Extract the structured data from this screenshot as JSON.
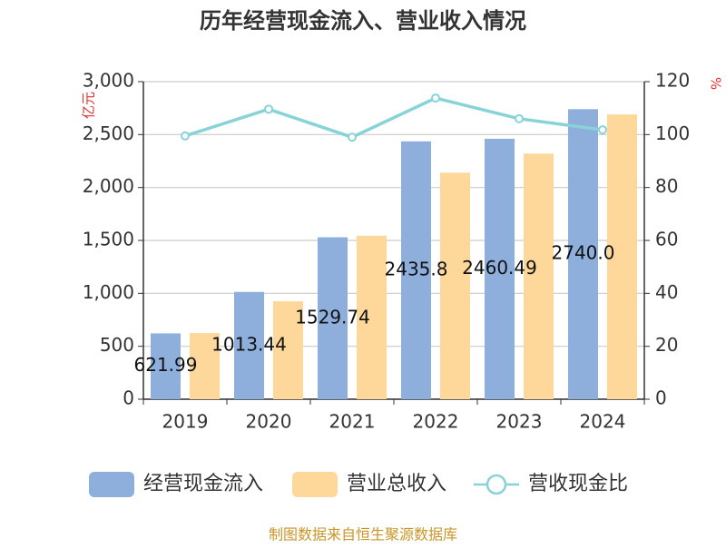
{
  "chart_data": {
    "type": "bar-line",
    "title": "历年经营现金流入、营业收入情况",
    "y_label": "亿元",
    "y2_label": "%",
    "categories": [
      "2019",
      "2020",
      "2021",
      "2022",
      "2023",
      "2024"
    ],
    "series": [
      {
        "name": "经营现金流入",
        "color": "#8eaedc",
        "type": "bar",
        "values": [
          621.99,
          1013.44,
          1529.74,
          2435.8,
          2460.49,
          2740.0
        ],
        "value_labels": [
          "621.99",
          "1013.44",
          "1529.74",
          "2435.8",
          "2460.49",
          "2740.0"
        ]
      },
      {
        "name": "营业总收入",
        "color": "#fdd89a",
        "type": "bar",
        "values": [
          625,
          925,
          1545,
          2140,
          2320,
          2690
        ]
      },
      {
        "name": "营收现金比",
        "color": "#88d3d8",
        "type": "line",
        "axis": "y2",
        "values": [
          99.5,
          109.6,
          99,
          113.8,
          106,
          101.8
        ]
      }
    ],
    "ylim": [
      0,
      3000
    ],
    "yticks": [
      0,
      500,
      {
        "value": 1000,
        "label": "1,000"
      },
      {
        "value": 1500,
        "label": "1,500"
      },
      {
        "value": 2000,
        "label": "2,000"
      },
      {
        "value": 2500,
        "label": "2,500"
      },
      {
        "value": 3000,
        "label": "3,000"
      }
    ],
    "y2lim": [
      0,
      120
    ],
    "y2ticks": [
      0,
      20,
      40,
      60,
      80,
      100,
      120
    ],
    "grid": true,
    "legend": "bottom",
    "source": "制图数据来自恒生聚源数据库"
  }
}
